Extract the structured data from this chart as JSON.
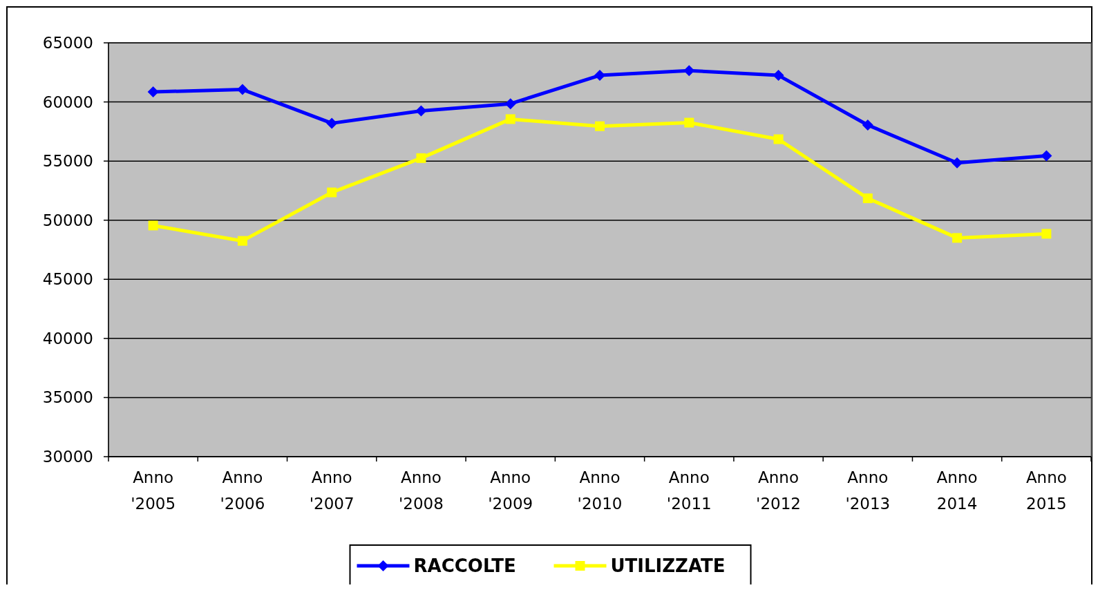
{
  "chart_data": {
    "type": "line",
    "categories": [
      "Anno '2005",
      "Anno '2006",
      "Anno '2007",
      "Anno '2008",
      "Anno '2009",
      "Anno '2010",
      "Anno '2011",
      "Anno '2012",
      "Anno '2013",
      "Anno 2014",
      "Anno 2015"
    ],
    "series": [
      {
        "name": "RACCOLTE",
        "color": "#0000ff",
        "marker": "diamond",
        "values": [
          60850,
          61050,
          58200,
          59250,
          59850,
          62250,
          62650,
          62250,
          58050,
          54850,
          55450
        ]
      },
      {
        "name": "UTILIZZATE",
        "color": "#ffff00",
        "marker": "square",
        "values": [
          49550,
          48250,
          52350,
          55250,
          58550,
          57950,
          58250,
          56850,
          51850,
          48500,
          48850
        ]
      }
    ],
    "ylim": [
      30000,
      65000
    ],
    "yticks": [
      30000,
      35000,
      40000,
      45000,
      50000,
      55000,
      60000,
      65000
    ],
    "grid": "y",
    "legend": "bottom",
    "line_style": "solid"
  }
}
